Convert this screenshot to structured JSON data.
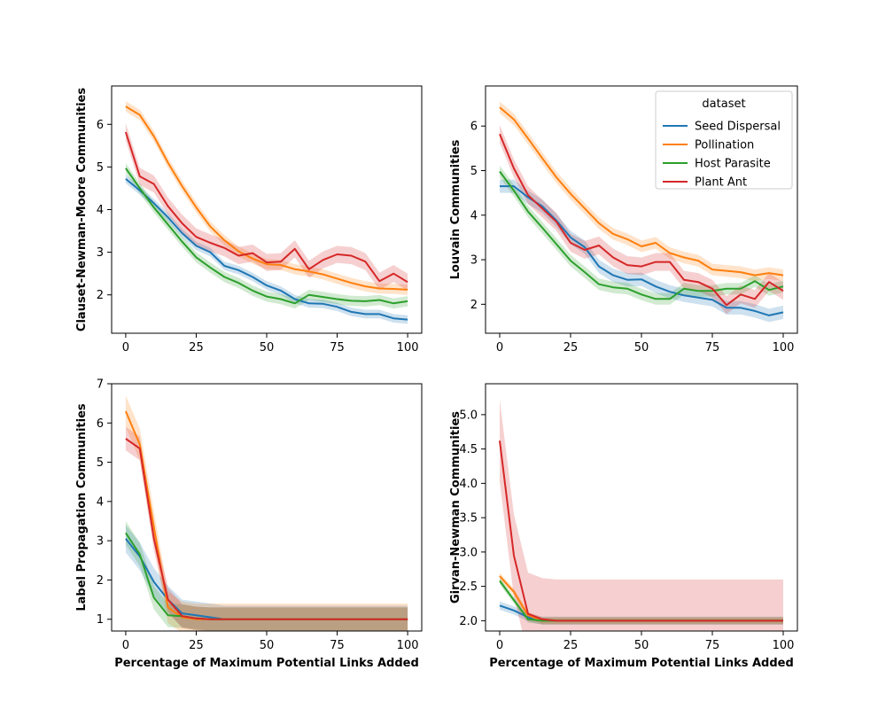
{
  "colors": {
    "seed_dispersal": "#1f77b4",
    "pollination": "#ff7f0e",
    "host_parasite": "#2ca02c",
    "plant_ant": "#d62728"
  },
  "legend": {
    "title": "dataset",
    "entries": [
      "Seed Dispersal",
      "Pollination",
      "Host Parasite",
      "Plant Ant"
    ]
  },
  "chart_data": [
    {
      "type": "line",
      "panel": "top-left",
      "title": "",
      "xlabel": "",
      "ylabel": "Clauset-Newman-Moore Communities",
      "xlim": [
        -5,
        105
      ],
      "ylim": [
        1.1,
        6.9
      ],
      "xticks": [
        0,
        25,
        50,
        75,
        100
      ],
      "yticks": [
        2,
        3,
        4,
        5,
        6
      ],
      "x": [
        0,
        5,
        10,
        15,
        20,
        25,
        30,
        35,
        40,
        45,
        50,
        55,
        60,
        65,
        70,
        75,
        80,
        85,
        90,
        95,
        100
      ],
      "series": [
        {
          "name": "Seed Dispersal",
          "band": 0.1,
          "values": [
            4.72,
            4.45,
            4.15,
            3.82,
            3.45,
            3.15,
            3.0,
            2.68,
            2.58,
            2.42,
            2.22,
            2.1,
            1.9,
            1.8,
            1.79,
            1.72,
            1.6,
            1.55,
            1.55,
            1.45,
            1.42
          ]
        },
        {
          "name": "Pollination",
          "band": 0.12,
          "values": [
            6.42,
            6.22,
            5.72,
            5.1,
            4.55,
            4.05,
            3.6,
            3.28,
            3.02,
            2.85,
            2.72,
            2.7,
            2.6,
            2.55,
            2.48,
            2.38,
            2.28,
            2.2,
            2.15,
            2.14,
            2.12
          ]
        },
        {
          "name": "Host Parasite",
          "band": 0.12,
          "values": [
            4.97,
            4.5,
            4.05,
            3.65,
            3.25,
            2.88,
            2.64,
            2.42,
            2.28,
            2.1,
            1.96,
            1.9,
            1.8,
            2.0,
            1.95,
            1.9,
            1.86,
            1.85,
            1.88,
            1.8,
            1.85
          ]
        },
        {
          "name": "Plant Ant",
          "band": 0.2,
          "values": [
            5.82,
            4.78,
            4.6,
            4.08,
            3.68,
            3.36,
            3.22,
            3.1,
            2.92,
            2.98,
            2.76,
            2.78,
            3.08,
            2.6,
            2.82,
            2.95,
            2.92,
            2.78,
            2.32,
            2.5,
            2.3
          ]
        }
      ]
    },
    {
      "type": "line",
      "panel": "top-right",
      "title": "",
      "xlabel": "",
      "ylabel": "Louvain Communities",
      "xlim": [
        -5,
        105
      ],
      "ylim": [
        1.35,
        6.9
      ],
      "xticks": [
        0,
        25,
        50,
        75,
        100
      ],
      "yticks": [
        2,
        3,
        4,
        5,
        6
      ],
      "legend_position": "top-right",
      "x": [
        0,
        5,
        10,
        15,
        20,
        25,
        30,
        35,
        40,
        45,
        50,
        55,
        60,
        65,
        70,
        75,
        80,
        85,
        90,
        95,
        100
      ],
      "series": [
        {
          "name": "Seed Dispersal",
          "band": 0.15,
          "values": [
            4.65,
            4.65,
            4.4,
            4.2,
            3.88,
            3.5,
            3.28,
            2.85,
            2.65,
            2.55,
            2.56,
            2.4,
            2.28,
            2.2,
            2.15,
            2.1,
            1.92,
            1.92,
            1.85,
            1.75,
            1.82
          ]
        },
        {
          "name": "Pollination",
          "band": 0.13,
          "values": [
            6.42,
            6.15,
            5.72,
            5.28,
            4.85,
            4.48,
            4.15,
            3.82,
            3.58,
            3.46,
            3.3,
            3.38,
            3.15,
            3.05,
            2.98,
            2.78,
            2.75,
            2.72,
            2.65,
            2.7,
            2.65
          ]
        },
        {
          "name": "Host Parasite",
          "band": 0.13,
          "values": [
            4.98,
            4.55,
            4.08,
            3.72,
            3.35,
            2.98,
            2.72,
            2.45,
            2.38,
            2.35,
            2.22,
            2.12,
            2.12,
            2.35,
            2.3,
            2.3,
            2.35,
            2.35,
            2.52,
            2.32,
            2.4
          ]
        },
        {
          "name": "Plant Ant",
          "band": 0.2,
          "values": [
            5.82,
            5.05,
            4.45,
            4.15,
            3.85,
            3.38,
            3.22,
            3.32,
            3.05,
            2.88,
            2.85,
            2.95,
            2.95,
            2.55,
            2.5,
            2.35,
            1.98,
            2.22,
            2.12,
            2.5,
            2.3
          ]
        }
      ]
    },
    {
      "type": "line",
      "panel": "bottom-left",
      "title": "",
      "xlabel": "Percentage of Maximum Potential Links Added",
      "ylabel": "Label Propagation Communities",
      "xlim": [
        -5,
        105
      ],
      "ylim": [
        0.7,
        7.0
      ],
      "xticks": [
        0,
        25,
        50,
        75,
        100
      ],
      "yticks": [
        1,
        2,
        3,
        4,
        5,
        6,
        7
      ],
      "x": [
        0,
        5,
        10,
        15,
        20,
        25,
        30,
        35,
        40,
        45,
        50,
        55,
        60,
        65,
        70,
        75,
        80,
        85,
        90,
        95,
        100
      ],
      "series": [
        {
          "name": "Seed Dispersal",
          "band": 0.35,
          "values": [
            3.05,
            2.6,
            1.95,
            1.5,
            1.15,
            1.1,
            1.05,
            1.0,
            1.0,
            1.0,
            1.0,
            1.0,
            1.0,
            1.0,
            1.0,
            1.0,
            1.0,
            1.0,
            1.0,
            1.0,
            1.0
          ]
        },
        {
          "name": "Pollination",
          "band": 0.4,
          "values": [
            6.3,
            5.45,
            3.35,
            1.3,
            1.05,
            1.0,
            1.0,
            1.0,
            1.0,
            1.0,
            1.0,
            1.0,
            1.0,
            1.0,
            1.0,
            1.0,
            1.0,
            1.0,
            1.0,
            1.0,
            1.0
          ]
        },
        {
          "name": "Host Parasite",
          "band": 0.3,
          "values": [
            3.2,
            2.65,
            1.55,
            1.1,
            1.08,
            1.02,
            1.0,
            1.0,
            1.0,
            1.0,
            1.0,
            1.0,
            1.0,
            1.0,
            1.0,
            1.0,
            1.0,
            1.0,
            1.0,
            1.0,
            1.0
          ]
        },
        {
          "name": "Plant Ant",
          "band": 0.3,
          "values": [
            5.6,
            5.35,
            3.05,
            1.5,
            1.08,
            1.02,
            1.0,
            1.0,
            1.0,
            1.0,
            1.0,
            1.0,
            1.0,
            1.0,
            1.0,
            1.0,
            1.0,
            1.0,
            1.0,
            1.0,
            1.0
          ]
        }
      ]
    },
    {
      "type": "line",
      "panel": "bottom-right",
      "title": "",
      "xlabel": "Percentage of Maximum Potential Links Added",
      "ylabel": "Girvan-Newman Communities",
      "xlim": [
        -5,
        105
      ],
      "ylim": [
        1.85,
        5.45
      ],
      "xticks": [
        0,
        25,
        50,
        75,
        100
      ],
      "yticks": [
        2.0,
        2.5,
        3.0,
        3.5,
        4.0,
        4.5,
        5.0
      ],
      "ytick_labels": [
        "2.0",
        "2.5",
        "3.0",
        "3.5",
        "4.0",
        "4.5",
        "5.0"
      ],
      "x": [
        0,
        5,
        10,
        15,
        20,
        25,
        30,
        35,
        40,
        45,
        50,
        55,
        60,
        65,
        70,
        75,
        80,
        85,
        90,
        95,
        100
      ],
      "series": [
        {
          "name": "Seed Dispersal",
          "band": 0.06,
          "values": [
            2.22,
            2.15,
            2.05,
            2.0,
            2.0,
            2.0,
            2.0,
            2.0,
            2.0,
            2.0,
            2.0,
            2.0,
            2.0,
            2.0,
            2.0,
            2.0,
            2.0,
            2.0,
            2.0,
            2.0,
            2.0
          ]
        },
        {
          "name": "Pollination",
          "band": 0.05,
          "values": [
            2.65,
            2.42,
            2.08,
            2.0,
            2.0,
            2.0,
            2.0,
            2.0,
            2.0,
            2.0,
            2.0,
            2.0,
            2.0,
            2.0,
            2.0,
            2.0,
            2.0,
            2.0,
            2.0,
            2.0,
            2.0
          ]
        },
        {
          "name": "Host Parasite",
          "band": 0.05,
          "values": [
            2.58,
            2.3,
            2.02,
            2.0,
            2.0,
            2.0,
            2.0,
            2.0,
            2.0,
            2.0,
            2.0,
            2.0,
            2.0,
            2.0,
            2.0,
            2.0,
            2.0,
            2.0,
            2.0,
            2.0,
            2.0
          ]
        },
        {
          "name": "Plant Ant",
          "band": 0.6,
          "values": [
            4.62,
            2.95,
            2.1,
            2.02,
            2.0,
            2.0,
            2.0,
            2.0,
            2.0,
            2.0,
            2.0,
            2.0,
            2.0,
            2.0,
            2.0,
            2.0,
            2.0,
            2.0,
            2.0,
            2.0,
            2.0
          ]
        }
      ]
    }
  ]
}
